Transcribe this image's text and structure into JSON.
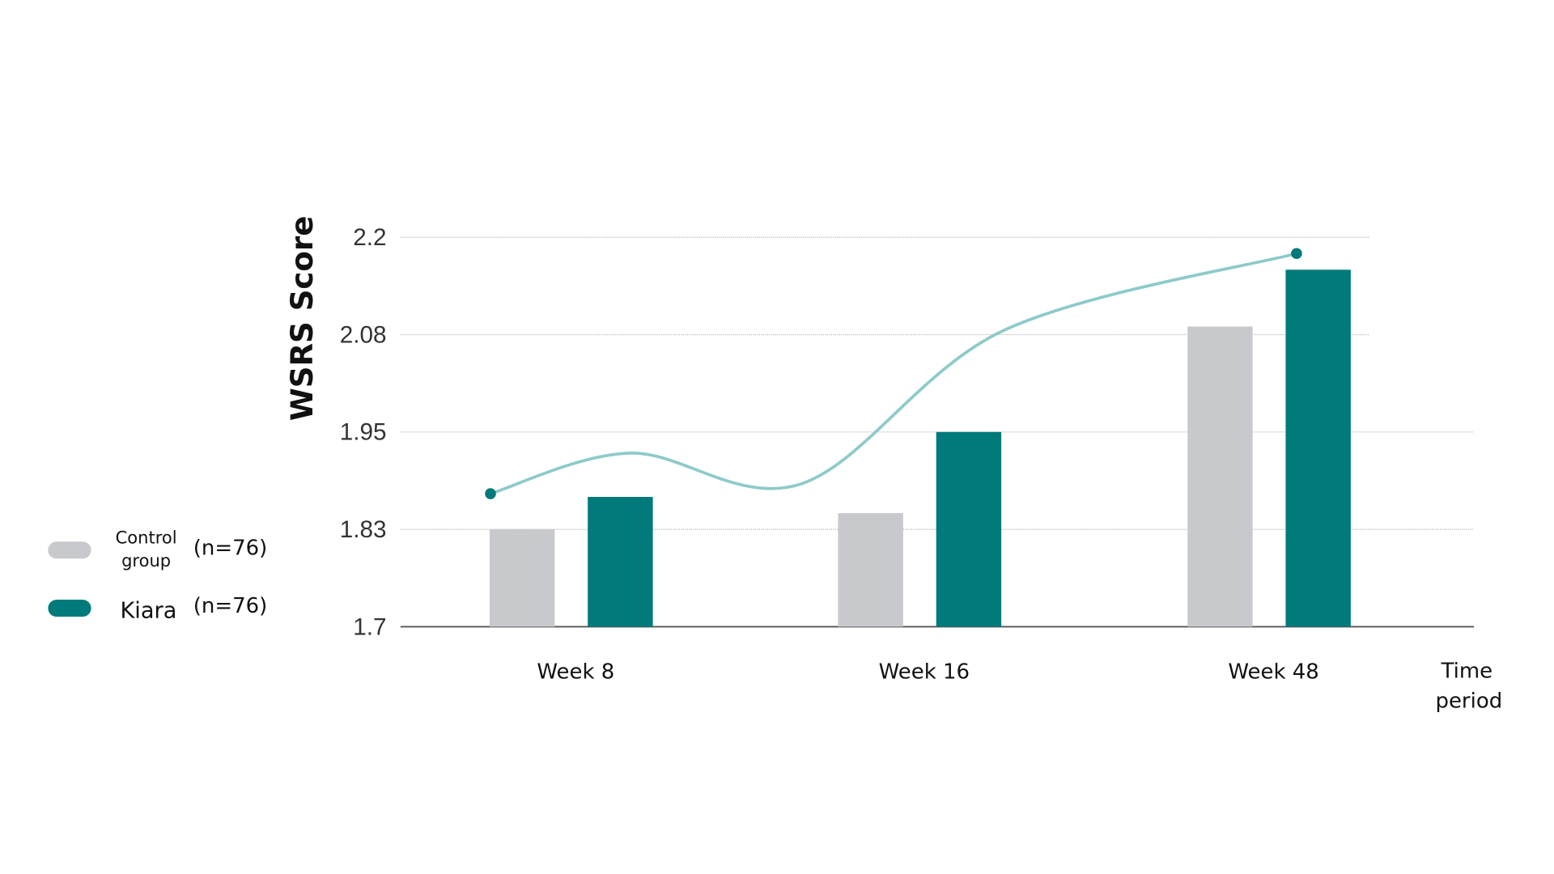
{
  "chart_data": {
    "type": "bar",
    "title": "",
    "xlabel": "Time period",
    "ylabel": "WSRS Score",
    "categories": [
      "Week 8",
      "Week 16",
      "Week 48"
    ],
    "yticks": [
      "1.7",
      "1.83",
      "1.95",
      "2.08",
      "2.2"
    ],
    "ytick_values": [
      1.7,
      1.83,
      1.95,
      2.08,
      2.2
    ],
    "ylim": [
      1.7,
      2.2
    ],
    "grid": true,
    "legend_placement": "left",
    "series": [
      {
        "name": "Control group",
        "n_label": "(n=76)",
        "color": "#c8c9cd",
        "values": [
          1.83,
          1.85,
          2.09
        ]
      },
      {
        "name": "Kiara",
        "n_label": "(n=76)",
        "color": "#007a7a",
        "values": [
          1.87,
          1.95,
          2.16
        ]
      }
    ],
    "trend_line": {
      "color": "#8ecaca",
      "marker_color": "#007a7a",
      "points": [
        [
          -0.23,
          1.874
        ],
        [
          0.17,
          1.924
        ],
        [
          0.66,
          1.886
        ],
        [
          1.24,
          2.085
        ],
        [
          2.08,
          2.18
        ]
      ]
    }
  },
  "legend": {
    "control_line1": "Control",
    "control_line2": "group",
    "control_n": "(n=76)",
    "kiara": "Kiara",
    "kiara_n": "(n=76)"
  },
  "xlabel_lines": [
    "Time",
    "period"
  ]
}
